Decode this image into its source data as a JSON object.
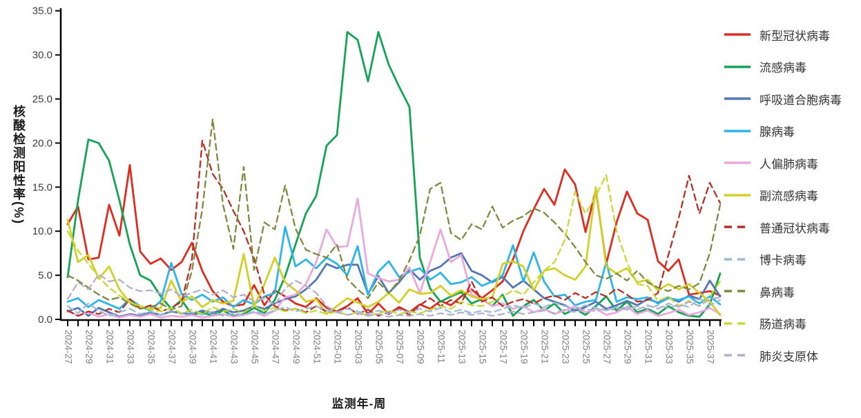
{
  "chart_data": {
    "type": "line",
    "title": "",
    "xlabel": "监测年-周",
    "ylabel": "核酸检测阳性率(%)",
    "ylim": [
      0,
      35
    ],
    "y_tick_step": 5,
    "y_tick_labels": [
      "0.0",
      "5.0",
      "10.0",
      "15.0",
      "20.0",
      "25.0",
      "30.0",
      "35.0"
    ],
    "x_label_every": 2,
    "grid": false,
    "legend_position": "right",
    "categories": [
      "2024-27",
      "2024-28",
      "2024-29",
      "2024-30",
      "2024-31",
      "2024-32",
      "2024-33",
      "2024-34",
      "2024-35",
      "2024-36",
      "2024-37",
      "2024-38",
      "2024-39",
      "2024-40",
      "2024-41",
      "2024-42",
      "2024-43",
      "2024-44",
      "2024-45",
      "2024-46",
      "2024-47",
      "2024-48",
      "2024-49",
      "2024-50",
      "2024-51",
      "2024-52",
      "2025-01",
      "2025-02",
      "2025-03",
      "2025-04",
      "2025-05",
      "2025-06",
      "2025-07",
      "2025-08",
      "2025-09",
      "2025-10",
      "2025-11",
      "2025-12",
      "2025-13",
      "2025-14",
      "2025-15",
      "2025-16",
      "2025-17",
      "2025-18",
      "2025-19",
      "2025-20",
      "2025-21",
      "2025-22",
      "2025-23",
      "2025-24",
      "2025-25",
      "2025-26",
      "2025-27",
      "2025-28",
      "2025-29",
      "2025-30",
      "2025-31",
      "2025-32",
      "2025-33",
      "2025-34",
      "2025-35",
      "2025-36",
      "2025-37",
      "2025-38"
    ],
    "series": [
      {
        "name": "新型冠状病毒",
        "color": "#e02a1d",
        "dashed": false,
        "values": [
          10.8,
          12.8,
          6.8,
          7.0,
          13.0,
          9.5,
          17.5,
          7.7,
          6.3,
          6.9,
          5.6,
          6.5,
          8.7,
          5.5,
          3.2,
          2.0,
          1.5,
          1.7,
          3.9,
          1.6,
          3.3,
          2.6,
          1.8,
          1.4,
          2.4,
          1.3,
          0.9,
          1.5,
          2.4,
          0.6,
          1.8,
          0.6,
          1.4,
          0.8,
          1.7,
          1.2,
          2.1,
          1.6,
          2.6,
          3.4,
          2.4,
          3.3,
          4.3,
          6.8,
          10.0,
          12.5,
          14.8,
          13.0,
          17.0,
          15.3,
          9.9,
          14.7,
          6.3,
          11.0,
          14.5,
          12.0,
          11.3,
          6.6,
          5.5,
          6.8,
          2.8,
          3.0,
          3.2,
          2.7
        ]
      },
      {
        "name": "流感病毒",
        "color": "#12a353",
        "dashed": false,
        "values": [
          4.8,
          13.5,
          20.4,
          20.0,
          18.0,
          13.5,
          8.5,
          5.0,
          4.4,
          2.6,
          1.2,
          2.2,
          0.5,
          0.8,
          0.4,
          1.0,
          0.4,
          0.6,
          1.3,
          0.7,
          2.2,
          4.9,
          8.5,
          12.0,
          14.0,
          19.7,
          20.9,
          32.6,
          31.7,
          27.0,
          32.6,
          28.9,
          26.4,
          24.1,
          7.0,
          3.5,
          2.0,
          2.6,
          3.1,
          1.8,
          2.3,
          1.5,
          2.8,
          0.4,
          1.5,
          2.2,
          1.0,
          1.8,
          0.6,
          1.2,
          0.5,
          1.5,
          2.6,
          1.0,
          2.0,
          0.8,
          1.2,
          0.6,
          1.5,
          0.8,
          0.4,
          0.3,
          1.7,
          5.2
        ]
      },
      {
        "name": "呼吸道合胞病毒",
        "color": "#5276b4",
        "dashed": false,
        "values": [
          0.9,
          1.3,
          0.4,
          1.3,
          0.8,
          0.3,
          0.6,
          0.4,
          0.8,
          0.5,
          0.9,
          0.7,
          0.6,
          1.0,
          0.7,
          1.2,
          0.8,
          1.0,
          1.5,
          1.2,
          1.8,
          2.3,
          2.6,
          3.4,
          4.5,
          6.3,
          5.8,
          6.2,
          6.2,
          2.9,
          4.9,
          3.0,
          4.2,
          5.7,
          4.5,
          5.5,
          6.0,
          7.0,
          7.5,
          5.5,
          5.0,
          4.2,
          4.8,
          3.6,
          4.4,
          3.4,
          2.4,
          2.0,
          1.6,
          1.0,
          1.4,
          2.0,
          1.2,
          1.6,
          2.1,
          1.6,
          2.3,
          1.9,
          2.5,
          2.0,
          2.7,
          2.3,
          4.4,
          2.6
        ]
      },
      {
        "name": "腺病毒",
        "color": "#2cb5e8",
        "dashed": false,
        "values": [
          2.0,
          2.4,
          1.4,
          2.2,
          1.7,
          1.2,
          2.3,
          1.5,
          1.0,
          2.1,
          6.4,
          2.9,
          2.2,
          2.8,
          2.0,
          2.5,
          1.4,
          2.2,
          1.7,
          2.6,
          3.0,
          10.5,
          6.0,
          6.8,
          5.8,
          7.0,
          6.3,
          5.0,
          8.3,
          2.8,
          5.4,
          6.6,
          4.8,
          5.4,
          5.8,
          4.5,
          5.3,
          4.0,
          4.2,
          4.8,
          3.8,
          4.3,
          5.0,
          8.4,
          4.3,
          7.6,
          4.3,
          2.6,
          2.8,
          1.6,
          2.0,
          2.2,
          6.5,
          2.0,
          2.5,
          2.3,
          2.5,
          1.8,
          2.4,
          2.2,
          2.6,
          1.8,
          2.6,
          1.7
        ]
      },
      {
        "name": "人偏肺病毒",
        "color": "#eaa9de",
        "dashed": false,
        "values": [
          1.0,
          0.4,
          0.8,
          0.3,
          0.6,
          0.2,
          0.5,
          0.3,
          0.6,
          0.2,
          0.4,
          0.3,
          0.5,
          0.2,
          0.4,
          0.6,
          0.3,
          0.5,
          0.8,
          0.4,
          1.0,
          2.5,
          2.8,
          4.0,
          6.5,
          10.2,
          8.2,
          8.3,
          13.7,
          5.2,
          4.7,
          4.3,
          4.5,
          5.9,
          3.0,
          6.5,
          10.2,
          6.5,
          7.3,
          2.8,
          2.3,
          1.5,
          1.8,
          1.2,
          1.5,
          0.8,
          1.2,
          0.6,
          1.0,
          1.5,
          0.8,
          1.2,
          0.5,
          0.8,
          1.4,
          0.6,
          1.0,
          0.4,
          0.7,
          1.1,
          0.5,
          0.8,
          1.3,
          0.6
        ]
      },
      {
        "name": "副流感病毒",
        "color": "#d2cf25",
        "dashed": false,
        "values": [
          11.3,
          6.5,
          7.3,
          4.6,
          6.0,
          3.4,
          1.9,
          1.5,
          1.2,
          1.3,
          4.4,
          2.0,
          2.6,
          1.4,
          2.2,
          1.8,
          2.1,
          7.4,
          1.5,
          4.0,
          7.0,
          4.2,
          3.3,
          2.0,
          2.3,
          0.6,
          1.5,
          2.4,
          1.9,
          1.4,
          2.0,
          3.0,
          1.9,
          3.4,
          2.9,
          3.0,
          3.8,
          2.7,
          3.3,
          2.6,
          2.3,
          2.5,
          6.3,
          6.6,
          6.0,
          3.3,
          5.5,
          5.8,
          5.0,
          4.5,
          6.0,
          15.0,
          6.0,
          5.2,
          5.8,
          4.2,
          4.5,
          3.3,
          4.0,
          3.4,
          4.0,
          3.0,
          2.0,
          0.5
        ]
      },
      {
        "name": "普通冠状病毒",
        "color": "#b92d23",
        "dashed": true,
        "values": [
          1.0,
          0.4,
          0.9,
          0.6,
          1.2,
          0.8,
          2.3,
          1.2,
          1.6,
          0.9,
          1.3,
          2.0,
          6.8,
          20.3,
          16.5,
          14.8,
          12.3,
          10.0,
          6.9,
          2.8,
          1.5,
          1.0,
          1.2,
          0.8,
          1.5,
          0.9,
          0.9,
          1.4,
          0.6,
          1.1,
          0.4,
          0.8,
          1.2,
          0.5,
          1.6,
          2.4,
          1.5,
          2.2,
          1.8,
          4.3,
          2.0,
          2.5,
          1.5,
          2.0,
          2.3,
          1.8,
          2.4,
          2.7,
          2.2,
          3.0,
          2.4,
          3.1,
          2.6,
          3.5,
          2.8,
          2.0,
          2.2,
          3.0,
          7.3,
          11.5,
          16.3,
          12.0,
          15.5,
          13.2
        ]
      },
      {
        "name": "博卡病毒",
        "color": "#9abada",
        "dashed": true,
        "values": [
          1.5,
          0.7,
          1.8,
          1.0,
          0.4,
          0.8,
          1.2,
          0.6,
          0.9,
          0.5,
          1.0,
          0.6,
          0.8,
          0.5,
          0.9,
          0.4,
          0.7,
          0.5,
          0.9,
          0.6,
          1.0,
          1.4,
          0.9,
          1.2,
          1.5,
          1.0,
          0.8,
          1.2,
          0.9,
          0.6,
          1.0,
          0.7,
          1.1,
          0.8,
          1.2,
          0.9,
          1.3,
          0.8,
          1.1,
          0.7,
          1.0,
          0.8,
          1.2,
          1.6,
          1.3,
          1.8,
          1.4,
          1.9,
          1.5,
          1.2,
          1.6,
          1.3,
          1.0,
          1.4,
          1.1,
          1.5,
          1.2,
          1.6,
          1.3,
          1.7,
          1.4,
          2.4,
          1.6,
          2.2
        ]
      },
      {
        "name": "鼻病毒",
        "color": "#7c8a3e",
        "dashed": true,
        "values": [
          5.0,
          4.4,
          3.6,
          2.8,
          2.2,
          2.5,
          1.8,
          1.2,
          1.4,
          1.8,
          1.1,
          1.5,
          5.5,
          12.5,
          22.7,
          13.0,
          8.0,
          17.3,
          5.6,
          11.0,
          10.2,
          15.2,
          10.3,
          7.9,
          7.4,
          7.0,
          8.5,
          4.6,
          3.4,
          2.4,
          4.2,
          3.0,
          4.4,
          6.7,
          9.5,
          14.8,
          15.5,
          9.8,
          9.0,
          10.8,
          10.2,
          12.8,
          10.4,
          11.2,
          11.7,
          12.6,
          12.1,
          11.0,
          9.7,
          8.2,
          6.5,
          5.0,
          4.6,
          5.2,
          4.4,
          5.5,
          4.2,
          3.6,
          3.2,
          3.8,
          3.4,
          4.1,
          7.5,
          13.0
        ]
      },
      {
        "name": "肠道病毒",
        "color": "#c7d831",
        "dashed": true,
        "values": [
          10.0,
          7.8,
          6.3,
          4.8,
          3.6,
          2.7,
          2.0,
          1.5,
          1.1,
          0.9,
          1.3,
          0.7,
          1.1,
          0.6,
          1.4,
          0.9,
          1.2,
          0.8,
          1.5,
          1.0,
          1.3,
          0.9,
          1.2,
          0.7,
          1.0,
          0.6,
          0.9,
          0.5,
          0.8,
          0.4,
          0.7,
          1.0,
          0.6,
          0.9,
          0.7,
          1.1,
          1.5,
          1.2,
          2.0,
          1.6,
          1.5,
          2.0,
          2.6,
          3.3,
          2.8,
          4.2,
          5.5,
          6.5,
          9.0,
          14.5,
          12.0,
          14.0,
          16.4,
          10.0,
          6.5,
          4.0,
          3.8,
          2.1,
          2.6,
          1.5,
          2.1,
          1.5,
          2.6,
          4.3
        ]
      },
      {
        "name": "肺炎支原体",
        "color": "#b4aecb",
        "dashed": true,
        "values": [
          2.3,
          4.2,
          3.4,
          5.1,
          4.3,
          4.5,
          3.6,
          3.2,
          3.3,
          2.9,
          3.4,
          2.6,
          3.0,
          3.4,
          2.8,
          3.3,
          2.5,
          2.8,
          2.0,
          2.4,
          1.6,
          3.5,
          4.4,
          3.8,
          3.0,
          1.5,
          0.8,
          0.5,
          0.7,
          0.4,
          0.6,
          0.3,
          0.5,
          0.4,
          0.6,
          0.4,
          0.7,
          0.5,
          0.8,
          0.5,
          0.7,
          0.4,
          0.6,
          0.9,
          0.6,
          0.8,
          1.0,
          0.7,
          1.1,
          0.8,
          1.2,
          0.9,
          1.3,
          1.0,
          1.5,
          1.1,
          1.6,
          1.2,
          1.8,
          1.4,
          2.0,
          1.5,
          2.3,
          2.5
        ]
      }
    ]
  }
}
